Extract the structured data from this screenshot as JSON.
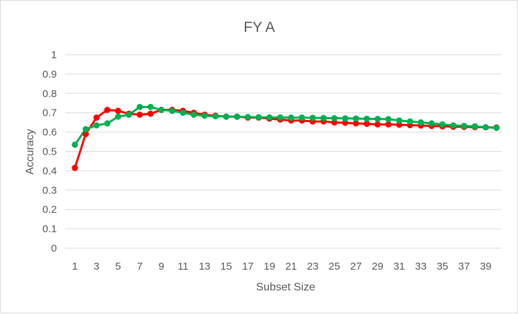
{
  "chart_data": {
    "type": "line",
    "title": "FY A",
    "xlabel": "Subset Size",
    "ylabel": "Accuracy",
    "x": [
      1,
      2,
      3,
      4,
      5,
      6,
      7,
      8,
      9,
      10,
      11,
      12,
      13,
      14,
      15,
      16,
      17,
      18,
      19,
      20,
      21,
      22,
      23,
      24,
      25,
      26,
      27,
      28,
      29,
      30,
      31,
      32,
      33,
      34,
      35,
      36,
      37,
      38,
      39,
      40
    ],
    "x_tick_labels": [
      "1",
      "3",
      "5",
      "7",
      "9",
      "11",
      "13",
      "15",
      "17",
      "19",
      "21",
      "23",
      "25",
      "27",
      "29",
      "31",
      "33",
      "35",
      "37",
      "39"
    ],
    "y_tick_labels": [
      "0",
      "0.1",
      "0.2",
      "0.3",
      "0.4",
      "0.5",
      "0.6",
      "0.7",
      "0.8",
      "0.9",
      "1"
    ],
    "ylim": [
      0,
      1
    ],
    "xlim": [
      1,
      40
    ],
    "grid": true,
    "legend": "none",
    "series": [
      {
        "color": "#ff0000",
        "values": [
          0.415,
          0.59,
          0.675,
          0.715,
          0.71,
          0.695,
          0.69,
          0.695,
          0.715,
          0.715,
          0.71,
          0.7,
          0.69,
          0.685,
          0.68,
          0.68,
          0.675,
          0.675,
          0.67,
          0.665,
          0.66,
          0.66,
          0.655,
          0.655,
          0.65,
          0.648,
          0.645,
          0.643,
          0.64,
          0.64,
          0.638,
          0.636,
          0.634,
          0.632,
          0.63,
          0.628,
          0.627,
          0.626,
          0.625,
          0.624
        ]
      },
      {
        "color": "#00b050",
        "values": [
          0.535,
          0.615,
          0.635,
          0.645,
          0.68,
          0.69,
          0.73,
          0.73,
          0.715,
          0.71,
          0.7,
          0.69,
          0.685,
          0.682,
          0.68,
          0.68,
          0.678,
          0.677,
          0.676,
          0.676,
          0.675,
          0.675,
          0.674,
          0.673,
          0.672,
          0.671,
          0.67,
          0.669,
          0.668,
          0.667,
          0.66,
          0.655,
          0.65,
          0.645,
          0.64,
          0.635,
          0.632,
          0.63,
          0.625,
          0.622
        ]
      }
    ]
  }
}
